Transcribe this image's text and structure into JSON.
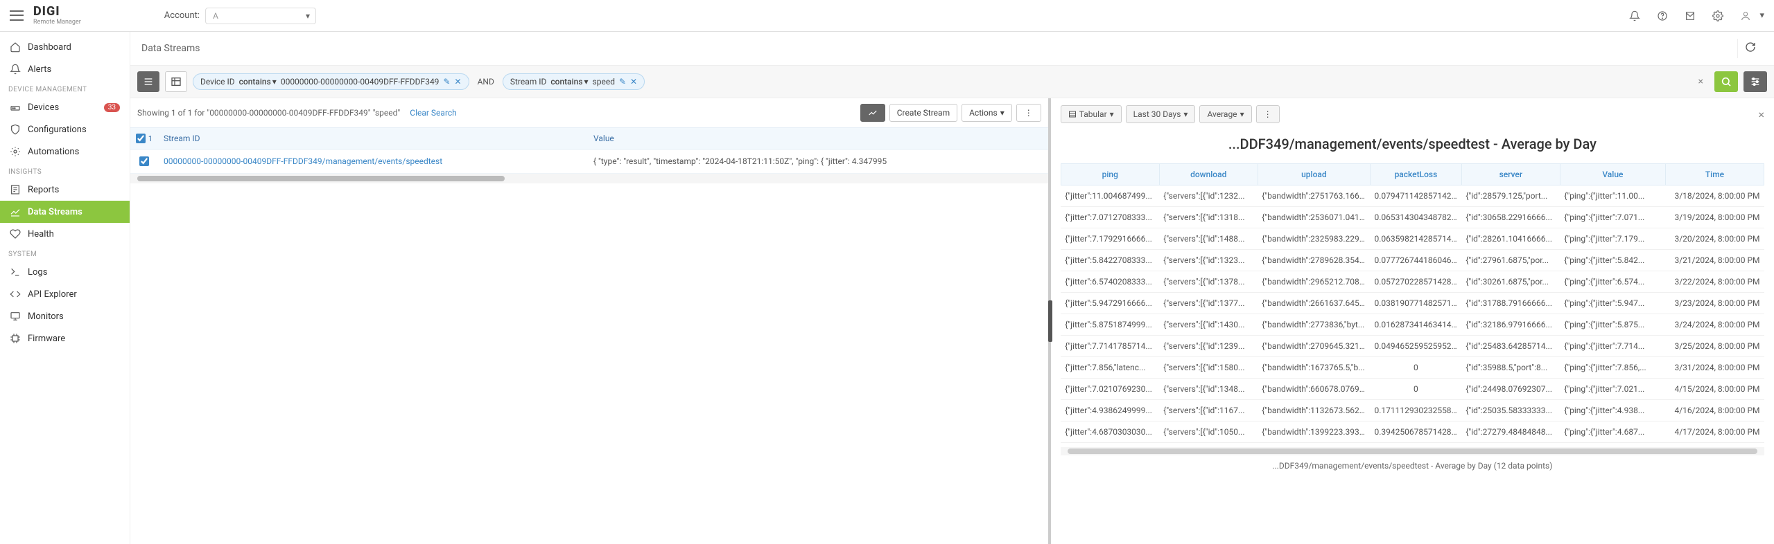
{
  "topbar": {
    "logo_main": "DIGI",
    "logo_sub": "Remote Manager",
    "account_label": "Account:",
    "account_value": "A",
    "user_name": " "
  },
  "sidebar": {
    "items_top": [
      {
        "icon": "home",
        "label": "Dashboard"
      },
      {
        "icon": "bell",
        "label": "Alerts"
      }
    ],
    "section_device": "DEVICE MANAGEMENT",
    "items_device": [
      {
        "icon": "router",
        "label": "Devices",
        "badge": "33"
      },
      {
        "icon": "shield",
        "label": "Configurations"
      },
      {
        "icon": "gear",
        "label": "Automations"
      }
    ],
    "section_insights": "INSIGHTS",
    "items_insights": [
      {
        "icon": "report",
        "label": "Reports"
      },
      {
        "icon": "chart",
        "label": "Data Streams",
        "active": true
      },
      {
        "icon": "heart",
        "label": "Health"
      }
    ],
    "section_system": "SYSTEM",
    "items_system": [
      {
        "icon": "terminal",
        "label": "Logs"
      },
      {
        "icon": "code",
        "label": "API Explorer"
      },
      {
        "icon": "monitor",
        "label": "Monitors"
      },
      {
        "icon": "chip",
        "label": "Firmware"
      }
    ]
  },
  "breadcrumb": "Data Streams",
  "filter": {
    "chip1": {
      "label": "Device ID",
      "operator": "contains",
      "value": "00000000-00000000-00409DFF-FFDDF349"
    },
    "and": "AND",
    "chip2": {
      "label": "Stream ID",
      "operator": "contains",
      "value": "speed"
    }
  },
  "left": {
    "showing": "Showing 1 of 1  for \"00000000-00000000-00409DFF-FFDDF349\" \"speed\"",
    "clear_search": "Clear Search",
    "create_stream": "Create Stream",
    "actions": "Actions",
    "header_stream": "Stream ID",
    "header_value": "Value",
    "selected_count": "1",
    "row": {
      "stream_id": "00000000-00000000-00409DFF-FFDDF349/management/events/speedtest",
      "value": "{ \"type\": \"result\", \"timestamp\": \"2024-04-18T21:11:50Z\", \"ping\": { \"jitter\": 4.347995"
    }
  },
  "right": {
    "tabular": "Tabular",
    "range": "Last 30 Days",
    "agg": "Average",
    "title": "...DDF349/management/events/speedtest - Average by Day",
    "columns": [
      "ping",
      "download",
      "upload",
      "packetLoss",
      "server",
      "Value",
      "Time"
    ],
    "col_widths": [
      "14%",
      "14%",
      "16%",
      "13%",
      "14%",
      "15%",
      "14%"
    ],
    "rows": [
      [
        "{\"jitter\":11.004687499...",
        "{\"servers\":[{\"id\":1232...",
        "{\"bandwidth\":2751763.1666...",
        "0.07947114285714285",
        "{\"id\":28579.125,\"port...",
        "{\"ping\":{\"jitter\":11.00...",
        "3/18/2024, 8:00:00 PM"
      ],
      [
        "{\"jitter\":7.0712708333...",
        "{\"servers\":[{\"id\":1318...",
        "{\"bandwidth\":2536071.0416...",
        "0.06531430434878261",
        "{\"id\":30658.22916666...",
        "{\"ping\":{\"jitter\":7.071...",
        "3/19/2024, 8:00:00 PM"
      ],
      [
        "{\"jitter\":7.1792916666...",
        "{\"servers\":[{\"id\":1488...",
        "{\"bandwidth\":2325983.2291...",
        "0.06359821428571429",
        "{\"id\":28261.10416666...",
        "{\"ping\":{\"jitter\":7.179...",
        "3/20/2024, 8:00:00 PM"
      ],
      [
        "{\"jitter\":5.8422708333...",
        "{\"servers\":[{\"id\":1323...",
        "{\"bandwidth\":2789628.3541...",
        "0.07772674418604653",
        "{\"id\":27961.6875,\"por...",
        "{\"ping\":{\"jitter\":5.842...",
        "3/21/2024, 8:00:00 PM"
      ],
      [
        "{\"jitter\":6.5740208333...",
        "{\"servers\":[{\"id\":1378...",
        "{\"bandwidth\":2965212.7083...",
        "0.05727022857142857",
        "{\"id\":30261.6875,\"por...",
        "{\"ping\":{\"jitter\":6.574...",
        "3/22/2024, 8:00:00 PM"
      ],
      [
        "{\"jitter\":5.9472916666...",
        "{\"servers\":[{\"id\":1377...",
        "{\"bandwidth\":2661637.6458...",
        "0.03819077148257143 4",
        "{\"id\":31788.79166666...",
        "{\"ping\":{\"jitter\":5.947...",
        "3/23/2024, 8:00:00 PM"
      ],
      [
        "{\"jitter\":5.8751874999...",
        "{\"servers\":[{\"id\":1430...",
        "{\"bandwidth\":2773836,\"byt...",
        "0.01628734146341463 3",
        "{\"id\":32186.97916666...",
        "{\"ping\":{\"jitter\":5.875...",
        "3/24/2024, 8:00:00 PM"
      ],
      [
        "{\"jitter\":7.7141785714...",
        "{\"servers\":[{\"id\":1239...",
        "{\"bandwidth\":2709645.3214...",
        "0.04946525952595292 6",
        "{\"id\":25483.64285714...",
        "{\"ping\":{\"jitter\":7.714...",
        "3/25/2024, 8:00:00 PM"
      ],
      [
        "{\"jitter\":7.856,\"latenc...",
        "{\"servers\":[{\"id\":1580...",
        "{\"bandwidth\":1673765.5,\"b...",
        "0",
        "{\"id\":35988.5,\"port\":8...",
        "{\"ping\":{\"jitter\":7.856,...",
        "3/31/2024, 8:00:00 PM"
      ],
      [
        "{\"jitter\":7.0210769230...",
        "{\"servers\":[{\"id\":1348...",
        "{\"bandwidth\":660678.07692...",
        "0",
        "{\"id\":24498.07692307...",
        "{\"ping\":{\"jitter\":7.021...",
        "4/15/2024, 8:00:00 PM"
      ],
      [
        "{\"jitter\":4.9386249999...",
        "{\"servers\":[{\"id\":1167...",
        "{\"bandwidth\":1132673.5625...",
        "0.17111293023255814",
        "{\"id\":25035.58333333...",
        "{\"ping\":{\"jitter\":4.938...",
        "4/16/2024, 8:00:00 PM"
      ],
      [
        "{\"jitter\":4.6870303030...",
        "{\"servers\":[{\"id\":1050...",
        "{\"bandwidth\":1399223.3939...",
        "0.39425067857142854",
        "{\"id\":27279.48484848...",
        "{\"ping\":{\"jitter\":4.687...",
        "4/17/2024, 8:00:00 PM"
      ]
    ],
    "footer": "...DDF349/management/events/speedtest - Average by Day (12 data points)"
  },
  "colors": {
    "accent_green": "#8cc63f",
    "link_blue": "#3a87c7",
    "chip_bg": "#eaf4fc",
    "chip_border": "#b8d8f0",
    "badge_red": "#d9534f",
    "header_bg": "#f2f8fd"
  }
}
